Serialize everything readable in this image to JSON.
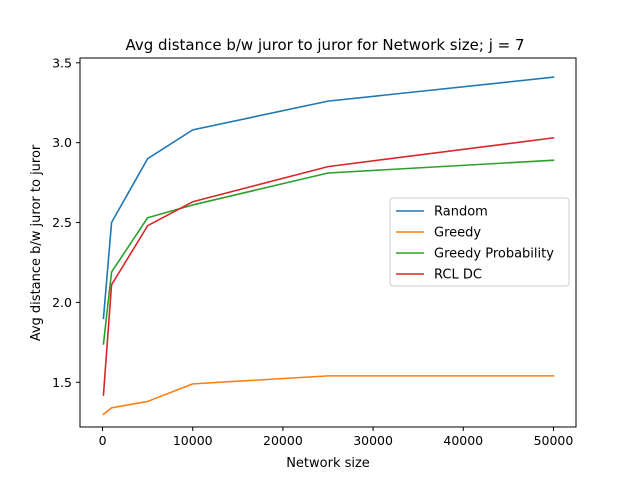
{
  "chart_data": {
    "type": "line",
    "title": "Avg distance b/w juror to juror for Network size; j = 7",
    "xlabel": "Network size",
    "ylabel": "Avg distance b/w juror to juror",
    "xlim": [
      -2500,
      52500
    ],
    "ylim": [
      1.22,
      3.53
    ],
    "xticks": [
      0,
      10000,
      20000,
      30000,
      40000,
      50000
    ],
    "yticks": [
      1.5,
      2.0,
      2.5,
      3.0,
      3.5
    ],
    "xtick_labels": [
      "0",
      "10000",
      "20000",
      "30000",
      "40000",
      "50000"
    ],
    "ytick_labels": [
      "1.5",
      "2.0",
      "2.5",
      "3.0",
      "3.5"
    ],
    "grid": false,
    "legend_position": "center-right",
    "x": [
      100,
      1000,
      5000,
      10000,
      25000,
      50000
    ],
    "series": [
      {
        "name": "Random",
        "color": "#1f77b4",
        "values": [
          1.9,
          2.5,
          2.9,
          3.08,
          3.26,
          3.41
        ]
      },
      {
        "name": "Greedy",
        "color": "#ff7f0e",
        "values": [
          1.3,
          1.34,
          1.38,
          1.49,
          1.54,
          1.54
        ]
      },
      {
        "name": "Greedy Probability",
        "color": "#2ca02c",
        "values": [
          1.74,
          2.19,
          2.53,
          2.61,
          2.81,
          2.89
        ]
      },
      {
        "name": "RCL DC",
        "color": "#d62728",
        "values": [
          1.42,
          2.11,
          2.48,
          2.63,
          2.85,
          3.03
        ]
      }
    ]
  }
}
